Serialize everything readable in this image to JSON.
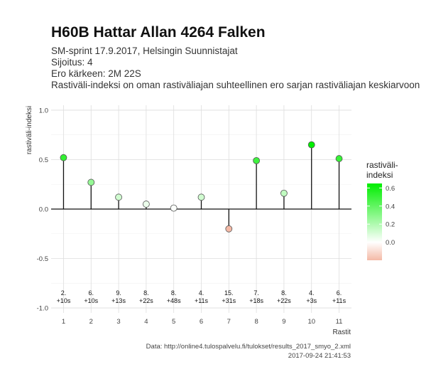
{
  "header": {
    "title": "H60B Hattar Allan 4264 Falken",
    "lines": [
      "SM-sprint 17.9.2017, Helsingin Suunnistajat",
      "Sijoitus: 4",
      "Ero kärkeen: 2M 22S",
      "Rastiväli-indeksi on oman rastiväliajan suhteellinen ero sarjan rastiväliajan keskiarvoon"
    ]
  },
  "caption": {
    "source": "Data: http://online4.tulospalvelu.fi/tulokset/results_2017_smyo_2.xml",
    "timestamp": "2017-09-24 21:41:53"
  },
  "chart_data": {
    "type": "lollipop",
    "title": "H60B Hattar Allan 4264 Falken",
    "xlabel": "Rastit",
    "ylabel": "rastiväli-indeksi",
    "x": [
      1,
      2,
      3,
      4,
      5,
      6,
      7,
      8,
      9,
      10,
      11
    ],
    "values": [
      0.52,
      0.27,
      0.12,
      0.05,
      0.01,
      0.12,
      -0.2,
      0.49,
      0.16,
      0.65,
      0.51
    ],
    "annotations_rank": [
      "2.",
      "6.",
      "9.",
      "8.",
      "8.",
      "4.",
      "15.",
      "7.",
      "8.",
      "4.",
      "6."
    ],
    "annotations_diff": [
      "+10s",
      "+10s",
      "+13s",
      "+22s",
      "+48s",
      "+11s",
      "+31s",
      "+18s",
      "+22s",
      "+3s",
      "+11s"
    ],
    "ylim": [
      -1.0,
      1.0
    ],
    "yticks": [
      -1.0,
      -0.5,
      0.0,
      0.5,
      1.0
    ],
    "ytick_labels": [
      "-1.0",
      "-0.5",
      "0.0",
      "0.5",
      "1.0"
    ],
    "grid": true,
    "legend": {
      "title_lines": [
        "rastiväli-",
        "indeksi"
      ],
      "ticks": [
        0.6,
        0.4,
        0.2,
        0.0
      ],
      "tick_labels": [
        "0.6",
        "0.4",
        "0.2",
        "0.0"
      ],
      "range": [
        -0.2,
        0.65
      ],
      "colors": {
        "low": "#f4b9a6",
        "mid": "#ffffff",
        "high": "#00ee00"
      },
      "placement": "right"
    }
  }
}
